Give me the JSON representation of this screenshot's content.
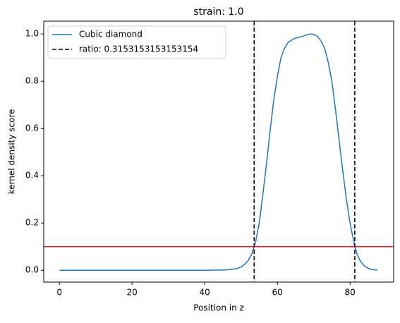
{
  "chart_data": {
    "type": "line",
    "title": "strain: 1.0",
    "x_label": "Position in z",
    "y_label": "kernel density score",
    "x": [
      0,
      10,
      20,
      30,
      40,
      45,
      47,
      49,
      50,
      51,
      52,
      53,
      53.6,
      54,
      55,
      56,
      57,
      58,
      59,
      60,
      61,
      62,
      63,
      64,
      65,
      66,
      67,
      68,
      69,
      70,
      71,
      72,
      73,
      74,
      75,
      76,
      77,
      78,
      79,
      80,
      81.3,
      82,
      83,
      84,
      85,
      86,
      87.5
    ],
    "series": [
      {
        "name": "Cubic diamond",
        "color": "#1f77b4",
        "values": [
          0,
          0,
          0,
          0,
          0,
          0.001,
          0.003,
          0.008,
          0.014,
          0.025,
          0.042,
          0.07,
          0.1,
          0.12,
          0.2,
          0.32,
          0.45,
          0.59,
          0.72,
          0.82,
          0.9,
          0.94,
          0.965,
          0.975,
          0.982,
          0.986,
          0.99,
          0.996,
          1.0,
          0.998,
          0.99,
          0.97,
          0.94,
          0.88,
          0.8,
          0.68,
          0.55,
          0.42,
          0.3,
          0.2,
          0.1,
          0.065,
          0.035,
          0.018,
          0.008,
          0.003,
          0.001
        ]
      }
    ],
    "vlines": {
      "name": "ratio: 0.3153153153153154",
      "color": "#000000",
      "x": [
        53.6,
        81.3
      ]
    },
    "hline": {
      "y": 0.1,
      "color": "#e31a1c"
    },
    "xlim": [
      -4.3,
      92
    ],
    "ylim": [
      -0.05,
      1.054
    ],
    "xticks": [
      0,
      20,
      40,
      60,
      80
    ],
    "yticks": [
      {
        "value": 0,
        "label": "0.0"
      },
      0.2,
      0.4,
      0.6,
      0.8,
      {
        "value": 1,
        "label": "1.0"
      }
    ],
    "legend": "upper left"
  }
}
